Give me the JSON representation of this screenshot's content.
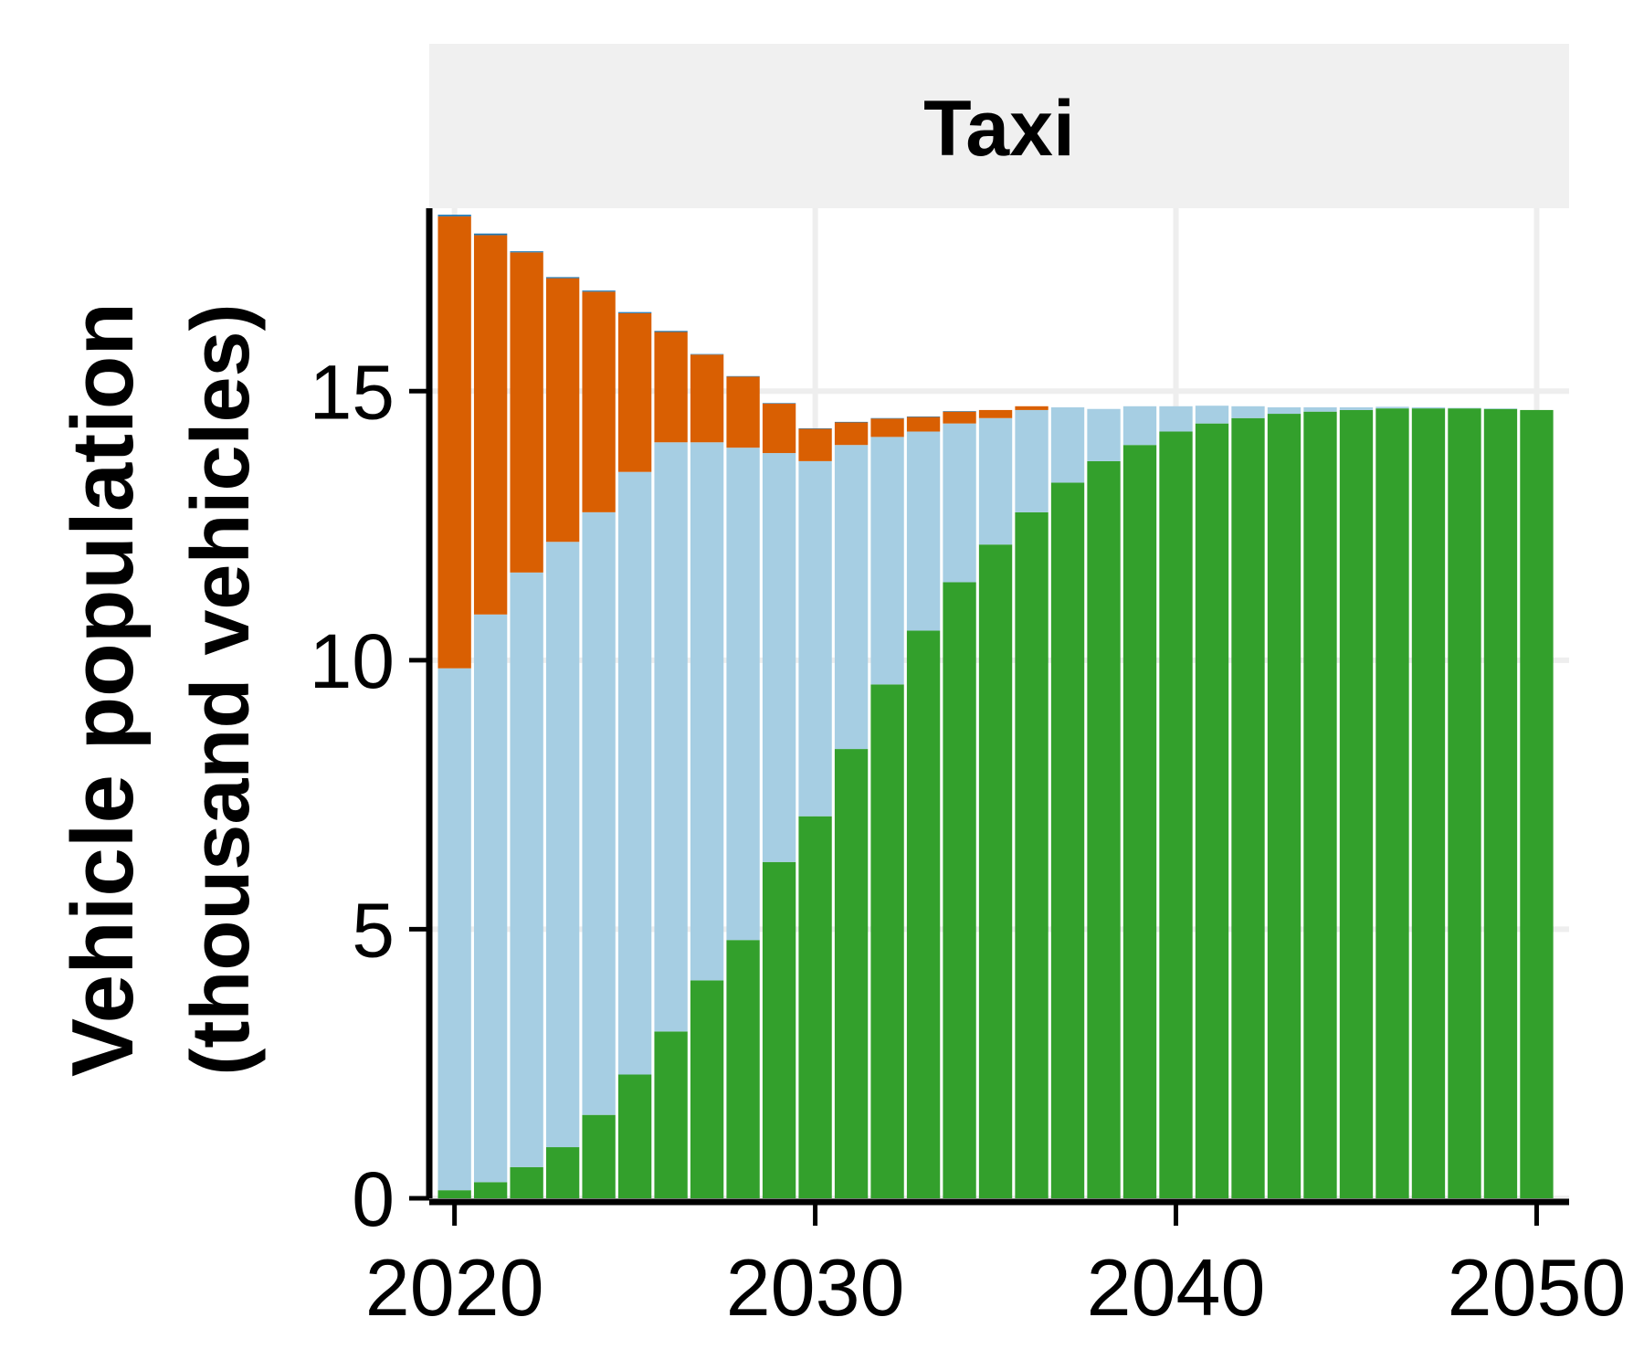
{
  "chart_data": {
    "type": "bar",
    "stacked": true,
    "facet_title": "Taxi",
    "ylabel_lines": [
      "Vehicle population",
      "(thousand vehicles)"
    ],
    "xlabel": "",
    "xlim": [
      2019.3,
      2050.9
    ],
    "ylim": [
      0,
      18.4
    ],
    "x_ticks": [
      2020,
      2030,
      2040,
      2050
    ],
    "y_ticks": [
      0,
      5,
      10,
      15
    ],
    "grid": true,
    "legend": "none",
    "x": [
      2020,
      2021,
      2022,
      2023,
      2024,
      2025,
      2026,
      2027,
      2028,
      2029,
      2030,
      2031,
      2032,
      2033,
      2034,
      2035,
      2036,
      2037,
      2038,
      2039,
      2040,
      2041,
      2042,
      2043,
      2044,
      2045,
      2046,
      2047,
      2048,
      2049,
      2050
    ],
    "series": [
      {
        "color": "#33a02c",
        "values": [
          0.15,
          0.3,
          0.58,
          0.95,
          1.55,
          2.3,
          3.1,
          4.05,
          4.8,
          6.25,
          7.1,
          8.35,
          9.55,
          10.55,
          11.45,
          12.15,
          12.75,
          13.3,
          13.7,
          14.0,
          14.25,
          14.4,
          14.5,
          14.58,
          14.62,
          14.65,
          14.68,
          14.68,
          14.68,
          14.67,
          14.65
        ]
      },
      {
        "color": "#a6cee3",
        "values": [
          9.7,
          10.55,
          11.05,
          11.25,
          11.2,
          11.2,
          10.95,
          10.0,
          9.15,
          7.6,
          6.6,
          5.65,
          4.6,
          3.7,
          2.95,
          2.35,
          1.9,
          1.4,
          0.97,
          0.72,
          0.47,
          0.33,
          0.22,
          0.12,
          0.08,
          0.05,
          0.03,
          0.02,
          0.01,
          0.01,
          0.0
        ]
      },
      {
        "color": "#d95f02",
        "values": [
          8.4,
          7.05,
          5.95,
          4.9,
          4.1,
          2.95,
          2.05,
          1.63,
          1.32,
          0.92,
          0.6,
          0.42,
          0.34,
          0.27,
          0.22,
          0.15,
          0.07,
          0.0,
          0.0,
          0.0,
          0.0,
          0.0,
          0.0,
          0.0,
          0.0,
          0.0,
          0.0,
          0.0,
          0.0,
          0.0,
          0.0
        ]
      },
      {
        "color": "#1f78b4",
        "values": [
          0.03,
          0.03,
          0.02,
          0.02,
          0.02,
          0.02,
          0.02,
          0.01,
          0.01,
          0.01,
          0.01,
          0.01,
          0.01,
          0.01,
          0.01,
          0,
          0,
          0,
          0,
          0,
          0,
          0,
          0,
          0,
          0,
          0,
          0,
          0,
          0,
          0,
          0
        ]
      }
    ]
  },
  "colors": {
    "strip_bg": "#f0f0f0",
    "grid": "#eeeeee",
    "axis": "#000000"
  }
}
